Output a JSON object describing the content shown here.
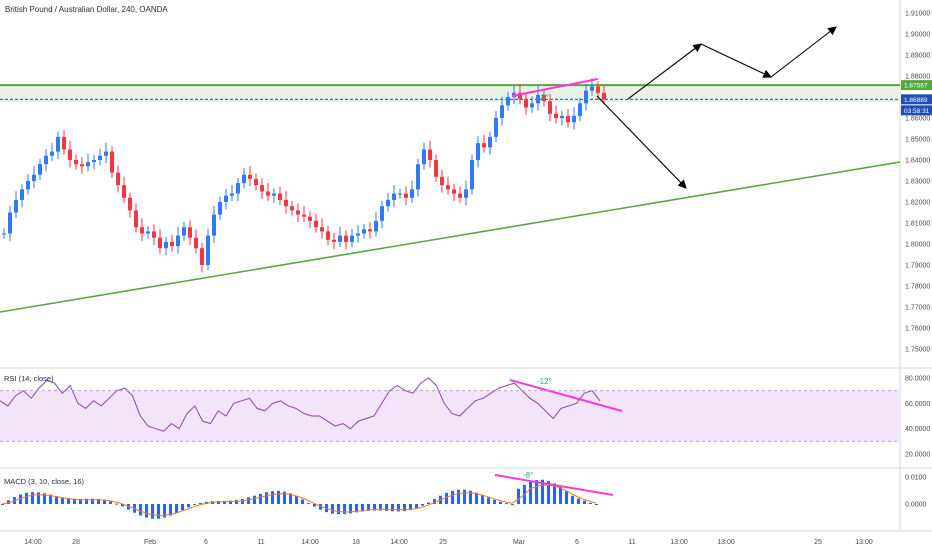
{
  "header": {
    "title": "British Pound / Australian Dollar, 240, OANDA"
  },
  "colors": {
    "up": "#3179f5",
    "down": "#f23645",
    "support_line": "#55a83a",
    "resistance_line": "#55a83a",
    "zone_fill": "#e8f3e5",
    "divergence": "#ff35e0",
    "rsi_line": "#8e44ad",
    "rsi_band": "#f3e5f9",
    "macd_hist": "#2962ff",
    "signal": "#f57c00",
    "price_dash": "#1f4fb4",
    "arrow": "#000000"
  },
  "price_axis": {
    "ticks": [
      "1.91000",
      "1.90000",
      "1.89000",
      "1.88000",
      "1.87000",
      "1.86000",
      "1.85000",
      "1.84000",
      "1.83000",
      "1.82000",
      "1.81000",
      "1.80000",
      "1.79000",
      "1.78000",
      "1.77000",
      "1.76000",
      "1.75000"
    ],
    "resistance_tag": "1.87567",
    "last_price_tag": "1.86889",
    "countdown_tag": "03:58:31"
  },
  "time_axis": {
    "labels": [
      "14:00",
      "28",
      "Feb",
      "6",
      "11",
      "14:00",
      "18",
      "14:00",
      "25",
      "Mar",
      "6",
      "11",
      "13:00",
      "13:00",
      "25",
      "13:00"
    ]
  },
  "rsi": {
    "label": "RSI (14, close)",
    "ticks": [
      "80.0000",
      "60.0000",
      "40.0000",
      "20.0000"
    ],
    "divergence_label": "-12°"
  },
  "macd": {
    "label": "MACD (3, 10, close, 16)",
    "ticks": [
      "0.0100",
      "0.0000"
    ],
    "divergence_label": "-8°"
  },
  "price_divergence_label": "8°",
  "chart_data": {
    "type": "candlestick",
    "symbol": "British Pound / Australian Dollar",
    "interval": "240",
    "source": "OANDA",
    "ylim": [
      1.745,
      1.915
    ],
    "close_path": [
      [
        0,
        1.805
      ],
      [
        6,
        1.815
      ],
      [
        12,
        1.821
      ],
      [
        18,
        1.826
      ],
      [
        24,
        1.83
      ],
      [
        30,
        1.833
      ],
      [
        36,
        1.838
      ],
      [
        42,
        1.842
      ],
      [
        48,
        1.844
      ],
      [
        54,
        1.851
      ],
      [
        60,
        1.845
      ],
      [
        66,
        1.84
      ],
      [
        72,
        1.838
      ],
      [
        78,
        1.837
      ],
      [
        84,
        1.839
      ],
      [
        90,
        1.84
      ],
      [
        96,
        1.842
      ],
      [
        102,
        1.844
      ],
      [
        108,
        1.834
      ],
      [
        114,
        1.828
      ],
      [
        120,
        1.822
      ],
      [
        126,
        1.816
      ],
      [
        132,
        1.808
      ],
      [
        138,
        1.805
      ],
      [
        144,
        1.806
      ],
      [
        150,
        1.803
      ],
      [
        156,
        1.798
      ],
      [
        162,
        1.801
      ],
      [
        168,
        1.799
      ],
      [
        174,
        1.804
      ],
      [
        180,
        1.808
      ],
      [
        186,
        1.803
      ],
      [
        192,
        1.798
      ],
      [
        198,
        1.79
      ],
      [
        204,
        1.804
      ],
      [
        210,
        1.814
      ],
      [
        216,
        1.82
      ],
      [
        222,
        1.823
      ],
      [
        228,
        1.824
      ],
      [
        234,
        1.829
      ],
      [
        240,
        1.833
      ],
      [
        246,
        1.831
      ],
      [
        252,
        1.828
      ],
      [
        258,
        1.825
      ],
      [
        264,
        1.823
      ],
      [
        270,
        1.824
      ],
      [
        276,
        1.821
      ],
      [
        282,
        1.818
      ],
      [
        288,
        1.816
      ],
      [
        294,
        1.814
      ],
      [
        300,
        1.813
      ],
      [
        306,
        1.811
      ],
      [
        312,
        1.808
      ],
      [
        318,
        1.806
      ],
      [
        324,
        1.802
      ],
      [
        330,
        1.801
      ],
      [
        336,
        1.804
      ],
      [
        342,
        1.801
      ],
      [
        348,
        1.804
      ],
      [
        354,
        1.805
      ],
      [
        360,
        1.807
      ],
      [
        366,
        1.806
      ],
      [
        372,
        1.811
      ],
      [
        378,
        1.818
      ],
      [
        384,
        1.821
      ],
      [
        390,
        1.824
      ],
      [
        396,
        1.824
      ],
      [
        402,
        1.822
      ],
      [
        408,
        1.826
      ],
      [
        414,
        1.838
      ],
      [
        420,
        1.845
      ],
      [
        426,
        1.84
      ],
      [
        432,
        1.832
      ],
      [
        438,
        1.828
      ],
      [
        444,
        1.826
      ],
      [
        450,
        1.824
      ],
      [
        456,
        1.822
      ],
      [
        462,
        1.826
      ],
      [
        468,
        1.84
      ],
      [
        474,
        1.848
      ],
      [
        480,
        1.846
      ],
      [
        486,
        1.851
      ],
      [
        492,
        1.86
      ],
      [
        498,
        1.866
      ],
      [
        504,
        1.87
      ],
      [
        510,
        1.872
      ],
      [
        516,
        1.869
      ],
      [
        522,
        1.865
      ],
      [
        528,
        1.867
      ],
      [
        534,
        1.871
      ],
      [
        540,
        1.868
      ],
      [
        546,
        1.862
      ],
      [
        552,
        1.86
      ],
      [
        558,
        1.861
      ],
      [
        564,
        1.858
      ],
      [
        570,
        1.861
      ],
      [
        576,
        1.867
      ],
      [
        582,
        1.873
      ],
      [
        588,
        1.875
      ],
      [
        594,
        1.872
      ],
      [
        600,
        1.869
      ]
    ],
    "resistance_level": 1.87567,
    "last_price": 1.86889,
    "rsi": {
      "ylim": [
        20,
        80
      ],
      "band": [
        30,
        70
      ]
    },
    "macd": {
      "ylim": [
        -0.006,
        0.012
      ]
    }
  }
}
